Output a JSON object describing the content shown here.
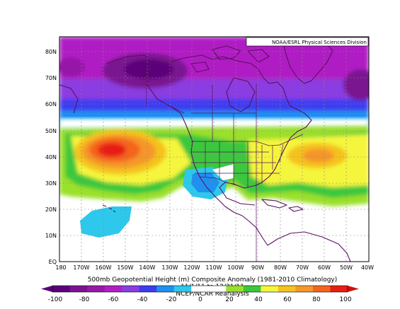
{
  "credit": "NOAA/ESRL Physical Sciences Division",
  "title": "500mb Geopotential Height (m) Composite Anomaly (1981-2010 Climatology)",
  "dates": "11/1/11  to 12/31/11",
  "source": "NCEP/NCAR Reanalysis",
  "lat_labels": [
    "80N",
    "70N",
    "60N",
    "50N",
    "40N",
    "30N",
    "20N",
    "10N",
    "EQ"
  ],
  "lon_labels": [
    "180",
    "170W",
    "160W",
    "150W",
    "140W",
    "130W",
    "120W",
    "110W",
    "100W",
    "90W",
    "80W",
    "70W",
    "60W",
    "50W",
    "40W"
  ],
  "colorbar": {
    "ticks": [
      "-100",
      "-80",
      "-60",
      "-40",
      "-20",
      "0",
      "20",
      "40",
      "60",
      "80",
      "100"
    ],
    "colors": [
      "#5b007a",
      "#7a1390",
      "#9619a8",
      "#b01fc4",
      "#8a3de0",
      "#3d3cf0",
      "#1e90f0",
      "#2ec8ec",
      "#ffffff",
      "#ffffff",
      "#9be02c",
      "#3bc83c",
      "#f5f53c",
      "#f5c21e",
      "#f5962a",
      "#f5641e",
      "#e81e14"
    ]
  },
  "colors": {
    "ocean_white": "#ffffff",
    "coast": "#5a1060",
    "grid": "#888888"
  }
}
